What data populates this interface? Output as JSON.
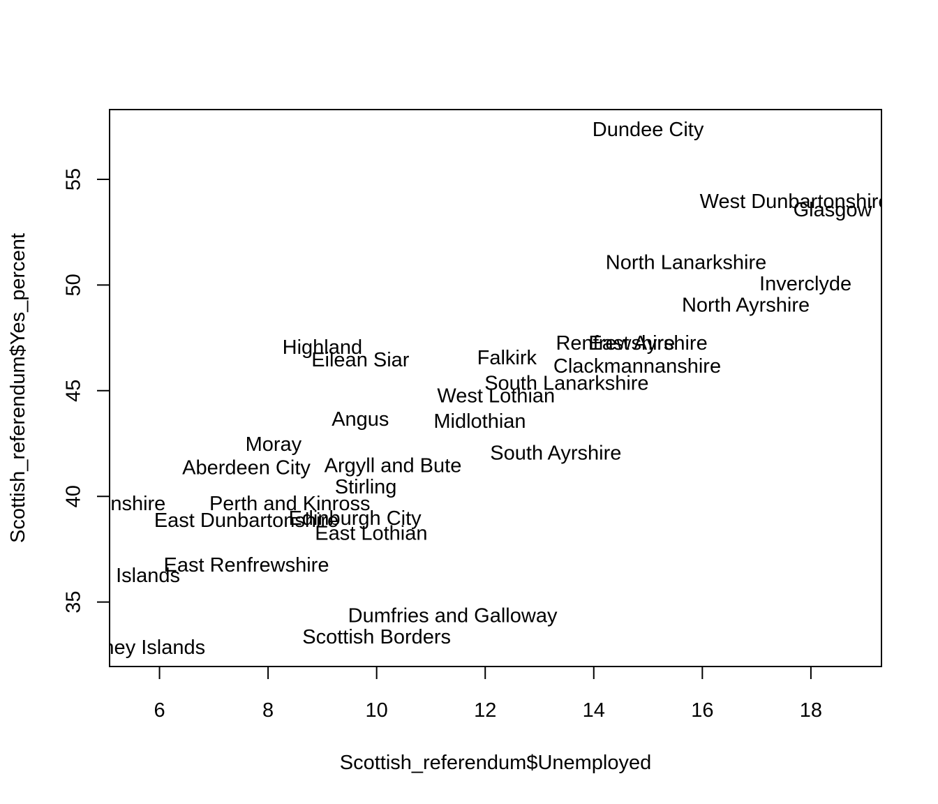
{
  "chart_data": {
    "type": "scatter",
    "title": "",
    "xlabel": "Scottish_referendum$Unemployed",
    "ylabel": "Scottish_referendum$Yes_percent",
    "xlim": [
      5.08,
      19.3
    ],
    "ylim": [
      31.95,
      58.3
    ],
    "xticks": [
      "6",
      "8",
      "10",
      "12",
      "14",
      "16",
      "18"
    ],
    "yticks": [
      "35",
      "40",
      "45",
      "50",
      "55"
    ],
    "grid": false,
    "marker": "text labels",
    "points": [
      {
        "label": "Dundee City",
        "x": 15.0,
        "y": 57.3
      },
      {
        "label": "West Dunbartonshire",
        "x": 17.7,
        "y": 53.9
      },
      {
        "label": "Glasgow",
        "x": 18.4,
        "y": 53.5
      },
      {
        "label": "North Lanarkshire",
        "x": 15.7,
        "y": 51.0
      },
      {
        "label": "Inverclyde",
        "x": 17.9,
        "y": 50.0
      },
      {
        "label": "North Ayrshire",
        "x": 16.8,
        "y": 49.0
      },
      {
        "label": "Highland",
        "x": 9.0,
        "y": 47.0
      },
      {
        "label": "Eilean Siar",
        "x": 9.7,
        "y": 46.4
      },
      {
        "label": "Falkirk",
        "x": 12.4,
        "y": 46.5
      },
      {
        "label": "Renfrewshire",
        "x": 14.4,
        "y": 47.2
      },
      {
        "label": "East Ayrshire",
        "x": 15.0,
        "y": 47.2
      },
      {
        "label": "Clackmannanshire",
        "x": 14.8,
        "y": 46.1
      },
      {
        "label": "South Lanarkshire",
        "x": 13.5,
        "y": 45.3
      },
      {
        "label": "West Lothian",
        "x": 12.2,
        "y": 44.7
      },
      {
        "label": "Angus",
        "x": 9.7,
        "y": 43.6
      },
      {
        "label": "Midlothian",
        "x": 11.9,
        "y": 43.5
      },
      {
        "label": "Moray",
        "x": 8.1,
        "y": 42.4
      },
      {
        "label": "South Ayrshire",
        "x": 13.3,
        "y": 42.0
      },
      {
        "label": "Aberdeen City",
        "x": 7.6,
        "y": 41.3
      },
      {
        "label": "Argyll and Bute",
        "x": 10.3,
        "y": 41.4
      },
      {
        "label": "Stirling",
        "x": 9.8,
        "y": 40.4
      },
      {
        "label": "Aberdeenshire",
        "x": 4.9,
        "y": 39.6
      },
      {
        "label": "Perth and Kinross",
        "x": 8.4,
        "y": 39.6
      },
      {
        "label": "East Dunbartonshire",
        "x": 7.6,
        "y": 38.8
      },
      {
        "label": "Edinburgh City",
        "x": 9.6,
        "y": 38.9
      },
      {
        "label": "East Lothian",
        "x": 9.9,
        "y": 38.2
      },
      {
        "label": "East Renfrewshire",
        "x": 7.6,
        "y": 36.7
      },
      {
        "label": "Shetland Islands",
        "x": 5.0,
        "y": 36.2
      },
      {
        "label": "Dumfries and Galloway",
        "x": 11.4,
        "y": 34.3
      },
      {
        "label": "Scottish Borders",
        "x": 10.0,
        "y": 33.3
      },
      {
        "label": "Orkney Islands",
        "x": 5.6,
        "y": 32.8
      }
    ]
  }
}
